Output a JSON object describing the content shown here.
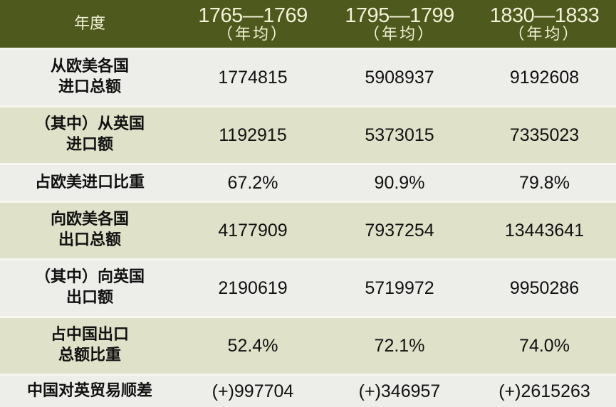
{
  "header": {
    "label": "年度",
    "periods": [
      {
        "years": "1765—1769",
        "note": "（年均）"
      },
      {
        "years": "1795—1799",
        "note": "（年均）"
      },
      {
        "years": "1830—1833",
        "note": "（年均）"
      }
    ]
  },
  "rows": [
    {
      "label_lines": [
        "从欧美各国",
        "进口总额"
      ],
      "values": [
        "1774815",
        "5908937",
        "9192608"
      ]
    },
    {
      "label_lines": [
        "（其中）从英国",
        "进口额"
      ],
      "values": [
        "1192915",
        "5373015",
        "7335023"
      ]
    },
    {
      "label_lines": [
        "占欧美进口比重"
      ],
      "values": [
        "67.2%",
        "90.9%",
        "79.8%"
      ]
    },
    {
      "label_lines": [
        "向欧美各国",
        "出口总额"
      ],
      "values": [
        "4177909",
        "7937254",
        "13443641"
      ]
    },
    {
      "label_lines": [
        "（其中）向英国",
        "出口额"
      ],
      "values": [
        "2190619",
        "5719972",
        "9950286"
      ]
    },
    {
      "label_lines": [
        "占中国出口",
        "总额比重"
      ],
      "values": [
        "52.4%",
        "72.1%",
        "74.0%"
      ]
    },
    {
      "label_lines": [
        "中国对英贸易顺差"
      ],
      "values": [
        "(+)997704",
        "(+)346957",
        "(+)2615263"
      ]
    }
  ],
  "colors": {
    "header_bg": "#4e5a1d",
    "header_text": "#f4f1d8",
    "row_light": "#ededea",
    "row_green": "#dfe1c9"
  }
}
